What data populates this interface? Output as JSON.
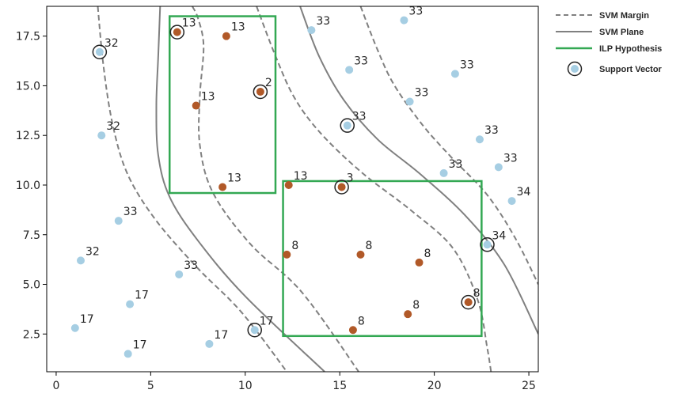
{
  "chart_data": {
    "type": "scatter",
    "xlim": [
      -0.5,
      25.5
    ],
    "ylim": [
      0.6,
      19.0
    ],
    "x_ticks": [
      "0",
      "5",
      "10",
      "15",
      "20",
      "25"
    ],
    "y_ticks": [
      "2.5",
      "5.0",
      "7.5",
      "10.0",
      "12.5",
      "15.0",
      "17.5"
    ],
    "grid": false,
    "legend_placement": "outside-right-top",
    "legend": [
      {
        "label": "SVM Margin",
        "style": "dashed",
        "color": "#808080"
      },
      {
        "label": "SVM Plane",
        "style": "solid",
        "color": "#808080"
      },
      {
        "label": "ILP Hypothesis",
        "style": "solid",
        "color": "#2ca02c"
      },
      {
        "label": "Support Vector",
        "style": "marker",
        "color": "#a6cee3"
      }
    ],
    "colors": {
      "class_blue": "#a6cee3",
      "class_brown": "#b15928",
      "svm": "#808080",
      "ilp": "#33a853",
      "support_ring": "#222222"
    },
    "points": [
      {
        "x": 2.3,
        "y": 16.7,
        "label": "32",
        "cls": "blue",
        "sv": true
      },
      {
        "x": 2.4,
        "y": 12.5,
        "label": "32",
        "cls": "blue",
        "sv": false
      },
      {
        "x": 3.3,
        "y": 8.2,
        "label": "33",
        "cls": "blue",
        "sv": false
      },
      {
        "x": 1.3,
        "y": 6.2,
        "label": "32",
        "cls": "blue",
        "sv": false
      },
      {
        "x": 6.5,
        "y": 5.5,
        "label": "33",
        "cls": "blue",
        "sv": false
      },
      {
        "x": 3.9,
        "y": 4.0,
        "label": "17",
        "cls": "blue",
        "sv": false
      },
      {
        "x": 1.0,
        "y": 2.8,
        "label": "17",
        "cls": "blue",
        "sv": false
      },
      {
        "x": 3.8,
        "y": 1.5,
        "label": "17",
        "cls": "blue",
        "sv": false
      },
      {
        "x": 8.1,
        "y": 2.0,
        "label": "17",
        "cls": "blue",
        "sv": false
      },
      {
        "x": 10.5,
        "y": 2.7,
        "label": "17",
        "cls": "blue",
        "sv": true
      },
      {
        "x": 6.4,
        "y": 17.7,
        "label": "13",
        "cls": "brown",
        "sv": true
      },
      {
        "x": 9.0,
        "y": 17.5,
        "label": "13",
        "cls": "brown",
        "sv": false
      },
      {
        "x": 10.8,
        "y": 14.7,
        "label": "2",
        "cls": "brown",
        "sv": true
      },
      {
        "x": 7.4,
        "y": 14.0,
        "label": "13",
        "cls": "brown",
        "sv": false
      },
      {
        "x": 8.8,
        "y": 9.9,
        "label": "13",
        "cls": "brown",
        "sv": false
      },
      {
        "x": 12.3,
        "y": 10.0,
        "label": "13",
        "cls": "brown",
        "sv": false
      },
      {
        "x": 15.1,
        "y": 9.9,
        "label": "3",
        "cls": "brown",
        "sv": true
      },
      {
        "x": 12.2,
        "y": 6.5,
        "label": "8",
        "cls": "brown",
        "sv": false
      },
      {
        "x": 16.1,
        "y": 6.5,
        "label": "8",
        "cls": "brown",
        "sv": false
      },
      {
        "x": 19.2,
        "y": 6.1,
        "label": "8",
        "cls": "brown",
        "sv": false
      },
      {
        "x": 21.8,
        "y": 4.1,
        "label": "8",
        "cls": "brown",
        "sv": true
      },
      {
        "x": 18.6,
        "y": 3.5,
        "label": "8",
        "cls": "brown",
        "sv": false
      },
      {
        "x": 15.7,
        "y": 2.7,
        "label": "8",
        "cls": "brown",
        "sv": false
      },
      {
        "x": 13.5,
        "y": 17.8,
        "label": "33",
        "cls": "blue",
        "sv": false
      },
      {
        "x": 18.4,
        "y": 18.3,
        "label": "33",
        "cls": "blue",
        "sv": false
      },
      {
        "x": 15.5,
        "y": 15.8,
        "label": "33",
        "cls": "blue",
        "sv": false
      },
      {
        "x": 21.1,
        "y": 15.6,
        "label": "33",
        "cls": "blue",
        "sv": false
      },
      {
        "x": 18.7,
        "y": 14.2,
        "label": "33",
        "cls": "blue",
        "sv": false
      },
      {
        "x": 15.4,
        "y": 13.0,
        "label": "33",
        "cls": "blue",
        "sv": true
      },
      {
        "x": 22.4,
        "y": 12.3,
        "label": "33",
        "cls": "blue",
        "sv": false
      },
      {
        "x": 20.5,
        "y": 10.6,
        "label": "33",
        "cls": "blue",
        "sv": false
      },
      {
        "x": 23.4,
        "y": 10.9,
        "label": "33",
        "cls": "blue",
        "sv": false
      },
      {
        "x": 24.1,
        "y": 9.2,
        "label": "34",
        "cls": "blue",
        "sv": false
      },
      {
        "x": 22.8,
        "y": 7.0,
        "label": "34",
        "cls": "blue",
        "sv": true
      }
    ],
    "ilp_boxes": [
      {
        "x0": 6.0,
        "x1": 11.6,
        "y0": 9.6,
        "y1": 18.5
      },
      {
        "x0": 12.0,
        "x1": 22.5,
        "y0": 2.4,
        "y1": 10.2
      }
    ],
    "svm_lines": [
      {
        "style": "dashed",
        "pts": [
          [
            2.2,
            19
          ],
          [
            2.5,
            16
          ],
          [
            3.0,
            13
          ],
          [
            3.8,
            10.5
          ],
          [
            5.3,
            8.2
          ],
          [
            7.5,
            5.8
          ],
          [
            9.8,
            3.6
          ],
          [
            12.2,
            0.6
          ]
        ]
      },
      {
        "style": "solid",
        "pts": [
          [
            5.5,
            19
          ],
          [
            5.4,
            16.5
          ],
          [
            5.3,
            14
          ],
          [
            5.4,
            11.5
          ],
          [
            6.0,
            9.4
          ],
          [
            7.5,
            7.2
          ],
          [
            10.0,
            4.4
          ],
          [
            14.2,
            0.6
          ]
        ]
      },
      {
        "style": "dashed",
        "pts": [
          [
            7.2,
            19
          ],
          [
            7.5,
            18.4
          ],
          [
            7.8,
            17
          ],
          [
            7.6,
            14.5
          ],
          [
            7.6,
            12
          ],
          [
            8.3,
            9.6
          ],
          [
            10.3,
            7.0
          ],
          [
            13.0,
            4.6
          ],
          [
            16.0,
            0.6
          ]
        ]
      },
      {
        "style": "dashed",
        "pts": [
          [
            10.6,
            19
          ],
          [
            11.6,
            16.5
          ],
          [
            12.6,
            14.4
          ],
          [
            14.0,
            12.6
          ],
          [
            16.2,
            10.6
          ],
          [
            18.8,
            8.7
          ],
          [
            21.0,
            6.8
          ],
          [
            22.3,
            4.2
          ],
          [
            22.8,
            1.8
          ],
          [
            23.0,
            0.6
          ]
        ]
      },
      {
        "style": "solid",
        "pts": [
          [
            12.9,
            19
          ],
          [
            13.9,
            16.5
          ],
          [
            15.2,
            14.3
          ],
          [
            17.0,
            12.3
          ],
          [
            19.2,
            10.6
          ],
          [
            21.6,
            8.5
          ],
          [
            23.7,
            6.0
          ],
          [
            25.5,
            2.5
          ]
        ]
      },
      {
        "style": "dashed",
        "pts": [
          [
            16.1,
            19
          ],
          [
            17.0,
            16.8
          ],
          [
            17.9,
            15.0
          ],
          [
            19.4,
            13.0
          ],
          [
            20.9,
            11.4
          ],
          [
            22.8,
            9.5
          ],
          [
            24.3,
            7.3
          ],
          [
            25.5,
            5.0
          ]
        ]
      }
    ]
  }
}
